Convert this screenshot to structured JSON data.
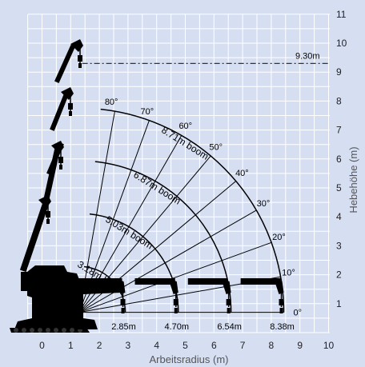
{
  "x_axis": {
    "title": "Arbeitsradius (m)",
    "ticks": [
      {
        "v": 0,
        "label": "0"
      },
      {
        "v": 1,
        "label": "1"
      },
      {
        "v": 2,
        "label": "2"
      },
      {
        "v": 3,
        "label": "3"
      },
      {
        "v": 4,
        "label": "4"
      },
      {
        "v": 5,
        "label": "5"
      },
      {
        "v": 6,
        "label": "6"
      },
      {
        "v": 7,
        "label": "7"
      },
      {
        "v": 8,
        "label": "8"
      },
      {
        "v": 9,
        "label": "9"
      },
      {
        "v": 10,
        "label": "10"
      }
    ]
  },
  "y_axis": {
    "title": "Hebehöhe (m)",
    "ticks": [
      {
        "v": 1,
        "label": "1"
      },
      {
        "v": 2,
        "label": "2"
      },
      {
        "v": 3,
        "label": "3"
      },
      {
        "v": 4,
        "label": "4"
      },
      {
        "v": 5,
        "label": "5"
      },
      {
        "v": 6,
        "label": "6"
      },
      {
        "v": 7,
        "label": "7"
      },
      {
        "v": 8,
        "label": "8"
      },
      {
        "v": 9,
        "label": "9"
      },
      {
        "v": 10,
        "label": "10"
      },
      {
        "v": 11,
        "label": "11"
      }
    ]
  },
  "pivot": {
    "x": 1.3,
    "y": 0.7
  },
  "booms": [
    {
      "label": "3.18m boom",
      "reach_label": "2.85m",
      "reach": 2.85
    },
    {
      "label": "5.03m boom",
      "reach_label": "4.70m",
      "reach": 4.7
    },
    {
      "label": "6.87m boom",
      "reach_label": "6.54m",
      "reach": 6.54
    },
    {
      "label": "8.71m boom",
      "reach_label": "8.38m",
      "reach": 8.38
    }
  ],
  "angles": [
    {
      "deg": 0,
      "label": "0°"
    },
    {
      "deg": 10,
      "label": "10°"
    },
    {
      "deg": 20,
      "label": "20°"
    },
    {
      "deg": 30,
      "label": "30°"
    },
    {
      "deg": 40,
      "label": "40°"
    },
    {
      "deg": 50,
      "label": "50°"
    },
    {
      "deg": 60,
      "label": "60°"
    },
    {
      "deg": 70,
      "label": "70°"
    },
    {
      "deg": 80,
      "label": "80°"
    }
  ],
  "max_height": {
    "label": "9.30m",
    "value": 9.3
  },
  "colors": {
    "background": "#d6dff2",
    "grid": "#ffffff",
    "arc": "#000000",
    "crane": "#000000",
    "dashed_line": "#333333",
    "text": "#000000",
    "axis_text": "#222222",
    "axis_title": "#555555"
  }
}
